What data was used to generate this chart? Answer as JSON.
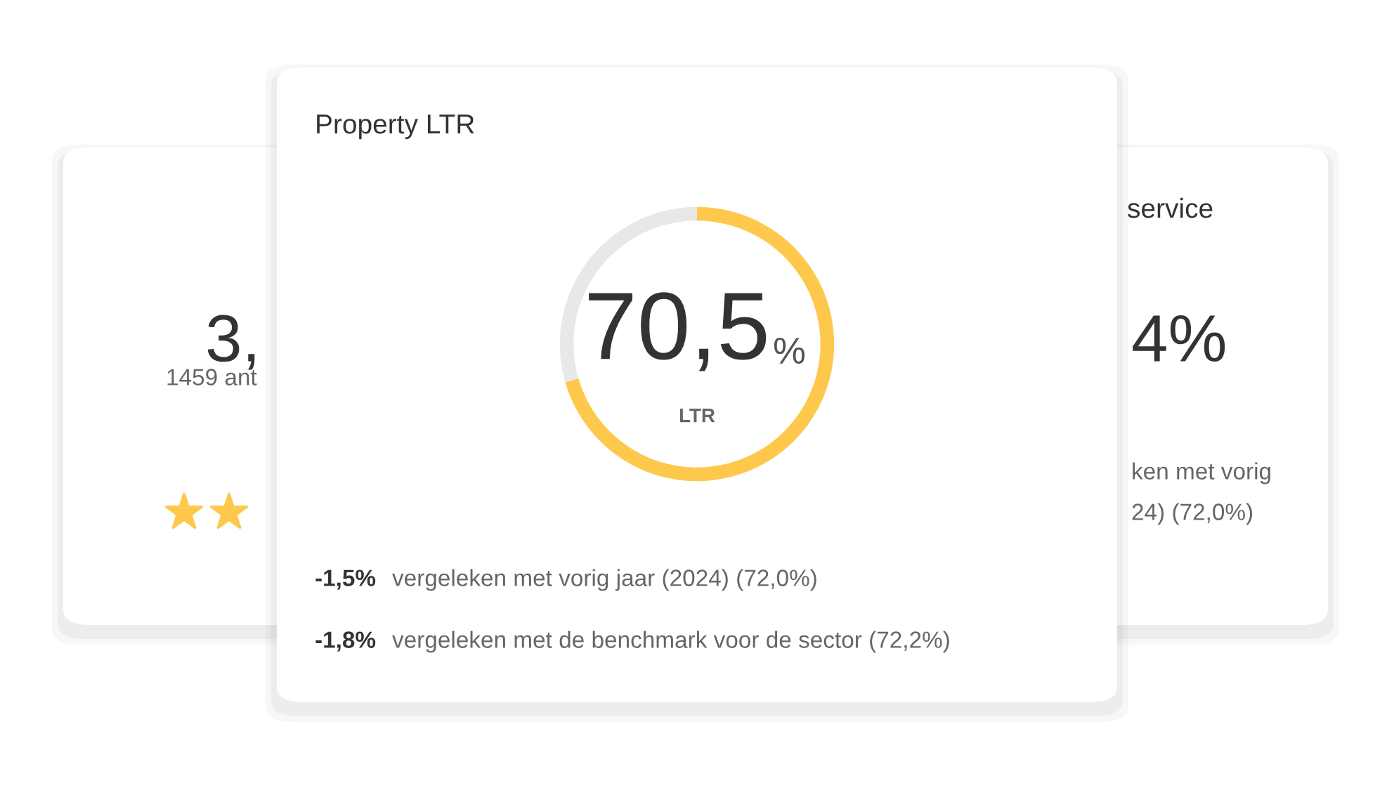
{
  "chart_data": [
    {
      "type": "donut",
      "title": "Property LTR",
      "categories": [
        null,
        null
      ],
      "values": [
        70.5,
        29.5
      ],
      "colors": [
        "#fec84d",
        "#e8e8e8"
      ],
      "annotations": [
        "70,5",
        "%",
        "LTR",
        "-1,5%",
        "vergeleken met vorig jaar (2024) (72,0%)",
        "-1,8%",
        "vergeleken met de benchmark voor de sector (72,2%)"
      ]
    },
    {
      "type": "other",
      "annotations": [
        "3,",
        "1459 ant"
      ]
    },
    {
      "type": "other",
      "title": "service",
      "annotations": [
        "4%",
        "ken met vorig",
        "24) (72,0%)"
      ]
    }
  ]
}
